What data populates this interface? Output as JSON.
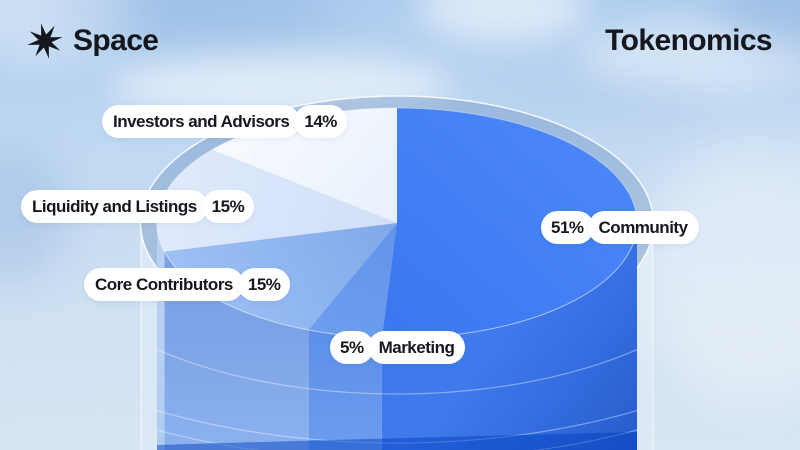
{
  "header": {
    "brand": "Space",
    "title": "Tokenomics"
  },
  "chart_data": {
    "type": "pie",
    "title": "Tokenomics",
    "unit": "%",
    "start_angle_deg": 0,
    "direction": "clockwise",
    "legend_position": "floating-pills",
    "slices": [
      {
        "label": "Community",
        "value": 51,
        "pct": "51%",
        "top_a": "#4a86f7",
        "top_b": "#3b78f1",
        "wall_a": "#3e7aec",
        "wall_b": "#2257c8"
      },
      {
        "label": "Marketing",
        "value": 5,
        "pct": "5%",
        "top_a": "#6294ea",
        "top_b": "#6d9ded",
        "wall_a": "#5c8fe8",
        "wall_b": "#6c9def"
      },
      {
        "label": "Core Contributors",
        "value": 15,
        "pct": "15%",
        "top_a": "#7fa8ea",
        "top_b": "#9cc0f4",
        "wall_a": "#7ca3e6",
        "wall_b": "#8db2ef"
      },
      {
        "label": "Liquidity and Listings",
        "value": 15,
        "pct": "15%",
        "top_a": "#d0dff7",
        "top_b": "#dee9fb",
        "wall_a": "#b9d0f2",
        "wall_b": "#aecbf0"
      },
      {
        "label": "Investors and Advisors",
        "value": 14,
        "pct": "14%",
        "top_a": "#e9f0fb",
        "top_b": "#f6faff",
        "wall_a": "#dfeafa",
        "wall_b": "#d5e3f8"
      }
    ],
    "style": {
      "ring_fill": "rgba(104,142,192,0.38)",
      "ring_stroke": "rgba(255,255,255,0.85)",
      "shell_wall_fill_a": "rgba(250,253,255,0.34)",
      "shell_wall_fill_b": "rgba(244,250,255,0.16)",
      "shell_edge_stroke": "rgba(255,255,255,0.55)",
      "rim_stroke": "rgba(255,255,255,0.5)",
      "ripple_stroke": "rgba(255,255,255,0.32)",
      "ripple_stroke_faint": "rgba(255,255,255,0.09)",
      "bottom_strip_fill": "rgba(0,62,190,0.48)"
    }
  }
}
